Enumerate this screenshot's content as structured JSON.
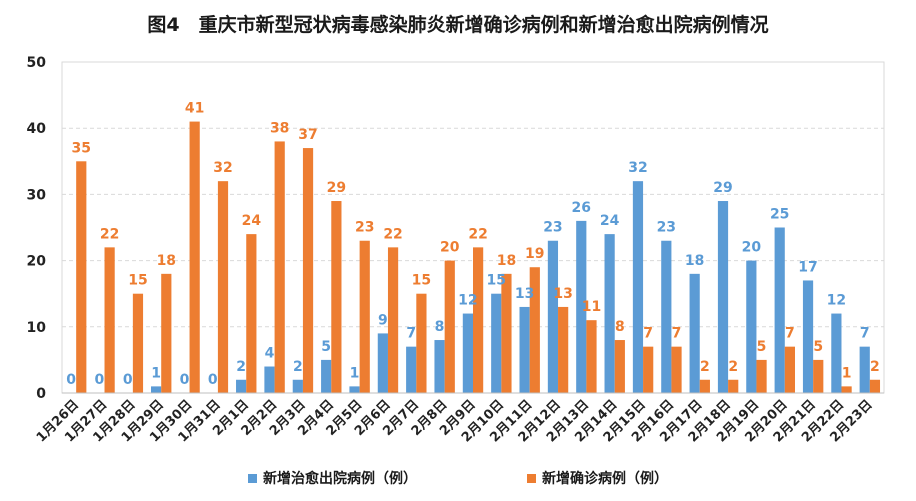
{
  "chart_data": {
    "type": "bar",
    "title": "图4　重庆市新型冠状病毒感染肺炎新增确诊病例和新增治愈出院病例情况",
    "categories": [
      "1月26日",
      "1月27日",
      "1月28日",
      "1月29日",
      "1月30日",
      "1月31日",
      "2月1日",
      "2月2日",
      "2月3日",
      "2月4日",
      "2月5日",
      "2月6日",
      "2月7日",
      "2月8日",
      "2月9日",
      "2月10日",
      "2月11日",
      "2月12日",
      "2月13日",
      "2月14日",
      "2月15日",
      "2月16日",
      "2月17日",
      "2月18日",
      "2月19日",
      "2月20日",
      "2月21日",
      "2月22日",
      "2月23日"
    ],
    "series": [
      {
        "name": "新增治愈出院病例（例）",
        "color": "#5B9BD5",
        "values": [
          0,
          0,
          0,
          1,
          0,
          0,
          2,
          4,
          2,
          5,
          1,
          9,
          7,
          8,
          12,
          15,
          13,
          23,
          26,
          24,
          32,
          23,
          18,
          29,
          20,
          25,
          17,
          12,
          7
        ]
      },
      {
        "name": "新增确诊病例（例）",
        "color": "#ED7D31",
        "values": [
          35,
          22,
          15,
          18,
          41,
          32,
          24,
          38,
          37,
          29,
          23,
          22,
          15,
          20,
          22,
          18,
          19,
          13,
          11,
          8,
          7,
          7,
          2,
          2,
          5,
          7,
          5,
          1,
          2
        ]
      }
    ],
    "ylim": [
      0,
      50
    ],
    "yticks": [
      0,
      10,
      20,
      30,
      40,
      50
    ],
    "grid": true,
    "legend": "bottom"
  }
}
